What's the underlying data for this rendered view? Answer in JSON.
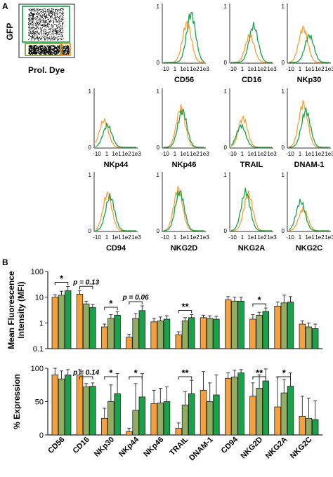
{
  "panels": {
    "a": "A",
    "b": "B"
  },
  "colors": {
    "orange": "#f5a13b",
    "olive": "#8fae64",
    "green": "#1aa24a",
    "gate_green": "#26a957",
    "gate_olive": "#8f9a44",
    "gate_orange": "#f0942a"
  },
  "flow": {
    "ylabel": "GFP",
    "xlabel": "Prol. Dye",
    "xticks": [
      "-10",
      "1",
      "1e1",
      "1e2",
      "1e3"
    ]
  },
  "chart_data": [
    {
      "type": "line",
      "subtype": "histogram_grid",
      "xscale": "log",
      "xticks": [
        "-10",
        "1",
        "1e1",
        "1e2",
        "1e3"
      ],
      "yticks": [
        "1",
        "0"
      ],
      "series_colors": [
        "#f5a13b",
        "#1aa24a"
      ],
      "histograms": [
        {
          "label": "CD56",
          "peaks": [
            [
              10,
              0.8
            ],
            [
              30,
              1.0
            ],
            [
              40,
              0.7
            ]
          ]
        },
        {
          "label": "CD16",
          "peaks": [
            [
              3,
              0.55
            ],
            [
              8,
              0.75
            ]
          ]
        },
        {
          "label": "NKp30",
          "peaks": [
            [
              1,
              0.7
            ],
            [
              5,
              0.55
            ]
          ]
        },
        {
          "label": "NKp44",
          "peaks": [
            [
              -5,
              0.55
            ],
            [
              -2,
              0.45
            ]
          ]
        },
        {
          "label": "NKp46",
          "peaks": [
            [
              2,
              0.8
            ],
            [
              3,
              0.75
            ]
          ]
        },
        {
          "label": "TRAIL",
          "peaks": [
            [
              0.5,
              0.6
            ],
            [
              0.3,
              0.45
            ]
          ]
        },
        {
          "label": "DNAM-1",
          "peaks": [
            [
              1,
              0.9
            ],
            [
              2,
              0.75
            ]
          ]
        },
        {
          "label": "CD94",
          "peaks": [
            [
              0.5,
              0.75
            ],
            [
              1,
              0.7
            ]
          ]
        },
        {
          "label": "NKG2D",
          "peaks": [
            [
              1,
              0.85
            ],
            [
              1.5,
              0.8
            ]
          ]
        },
        {
          "label": "NKG2A",
          "peaks": [
            [
              2,
              0.75
            ],
            [
              1,
              0.8
            ]
          ]
        },
        {
          "label": "NKG2C",
          "peaks": [
            [
              1,
              0.45
            ],
            [
              -2,
              0.6
            ]
          ]
        }
      ]
    },
    {
      "type": "bar",
      "ylabel": "Mean Fluorescence\nIntensity (MFI)",
      "yscale": "log",
      "ylim": [
        0.1,
        100
      ],
      "yticks": [
        "100",
        "10",
        "1",
        "0.1"
      ],
      "categories": [
        "CD56",
        "CD16",
        "NKp30",
        "NKp44",
        "NKp46",
        "TRAIL",
        "DNAM-1",
        "CD94",
        "NKG2D",
        "NKG2A",
        "NKG2C"
      ],
      "series": [
        {
          "color": "#f5a13b",
          "values": [
            10,
            13,
            0.7,
            0.28,
            1.1,
            0.35,
            1.6,
            8,
            1.4,
            4.5,
            0.9
          ],
          "errors": [
            2.5,
            5,
            0.2,
            0.08,
            0.4,
            0.1,
            0.4,
            2.5,
            0.7,
            2,
            0.3
          ]
        },
        {
          "color": "#8fae64",
          "values": [
            12,
            5.5,
            1.5,
            1.5,
            1.2,
            1.2,
            1.5,
            7,
            2,
            6,
            0.7
          ],
          "errors": [
            5,
            1.5,
            0.6,
            0.8,
            0.5,
            0.4,
            0.4,
            3,
            0.6,
            6,
            0.3
          ]
        },
        {
          "color": "#1aa24a",
          "values": [
            18,
            4,
            2,
            3,
            1.4,
            1.6,
            1.4,
            7,
            2.8,
            6.5,
            0.6
          ],
          "errors": [
            8,
            1.2,
            0.8,
            1.6,
            0.5,
            0.5,
            0.4,
            3,
            1,
            4,
            0.3
          ]
        }
      ],
      "annotations": [
        {
          "text": "*",
          "from": 0,
          "to": 2,
          "cat": 0
        },
        {
          "text": "p = 0.13",
          "from": 0,
          "to": 2,
          "cat": 1
        },
        {
          "text": "*",
          "from": 0,
          "to": 2,
          "cat": 2
        },
        {
          "text": "p = 0.06",
          "from": 0,
          "to": 2,
          "cat": 3
        },
        {
          "text": "**",
          "from": 0,
          "to": 2,
          "cat": 5
        },
        {
          "text": "*",
          "from": 0,
          "to": 2,
          "cat": 8
        }
      ]
    },
    {
      "type": "bar",
      "ylabel": "% Expression",
      "ylim": [
        0,
        100
      ],
      "yticks": [
        "100",
        "50",
        "0"
      ],
      "categories": [
        "CD56",
        "CD16",
        "NKp30",
        "NKp44",
        "NKp46",
        "TRAIL",
        "DNAM-1",
        "CD94",
        "NKG2D",
        "NKG2A",
        "NKG2C"
      ],
      "series": [
        {
          "color": "#f5a13b",
          "values": [
            90,
            90,
            25,
            5,
            47,
            10,
            67,
            85,
            58,
            42,
            28
          ],
          "errors": [
            10,
            8,
            15,
            5,
            20,
            8,
            28,
            8,
            20,
            45,
            30
          ]
        },
        {
          "color": "#8fae64",
          "values": [
            84,
            72,
            50,
            37,
            48,
            45,
            50,
            87,
            70,
            63,
            25
          ],
          "errors": [
            12,
            5,
            25,
            40,
            22,
            20,
            28,
            10,
            20,
            20,
            30
          ]
        },
        {
          "color": "#1aa24a",
          "values": [
            90,
            73,
            62,
            57,
            50,
            62,
            60,
            93,
            81,
            73,
            23
          ],
          "errors": [
            8,
            5,
            30,
            35,
            22,
            20,
            30,
            5,
            18,
            20,
            28
          ]
        }
      ],
      "annotations": [
        {
          "text": "p = 0.14",
          "from": 0,
          "to": 2,
          "cat": 1
        },
        {
          "text": "*",
          "from": 0,
          "to": 2,
          "cat": 2
        },
        {
          "text": "*",
          "from": 0,
          "to": 2,
          "cat": 3
        },
        {
          "text": "**",
          "from": 0,
          "to": 2,
          "cat": 5
        },
        {
          "text": "**",
          "from": 0,
          "to": 2,
          "cat": 8
        },
        {
          "text": "*",
          "from": 0,
          "to": 2,
          "cat": 9
        }
      ]
    }
  ]
}
